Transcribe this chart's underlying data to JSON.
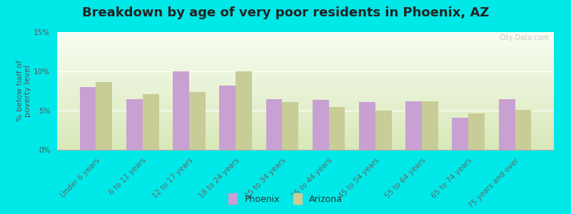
{
  "title": "Breakdown by age of very poor residents in Phoenix, AZ",
  "ylabel": "% below half of\npoverty level",
  "categories": [
    "Under 6 years",
    "6 to 11 years",
    "12 to 17 years",
    "18 to 24 years",
    "25 to 34 years",
    "35 to 44 years",
    "45 to 54 years",
    "55 to 64 years",
    "65 to 74 years",
    "75 years and over"
  ],
  "phoenix_values": [
    8.0,
    6.5,
    10.0,
    8.2,
    6.5,
    6.4,
    6.1,
    6.2,
    4.1,
    6.5
  ],
  "arizona_values": [
    8.6,
    7.1,
    7.4,
    10.0,
    6.1,
    5.5,
    5.0,
    6.2,
    4.6,
    5.1
  ],
  "phoenix_color": "#c8a0d2",
  "arizona_color": "#c8cc96",
  "background_outer": "#00e8e8",
  "ylim": [
    0,
    15
  ],
  "yticks": [
    0,
    5,
    10,
    15
  ],
  "ytick_labels": [
    "0%",
    "5%",
    "10%",
    "15%"
  ],
  "title_fontsize": 13,
  "axis_label_fontsize": 8,
  "tick_label_fontsize": 7.5,
  "legend_fontsize": 9,
  "bar_width": 0.35,
  "watermark": "City-Data.com",
  "grad_top": "#f8fdf2",
  "grad_bottom": "#d8e8b8"
}
